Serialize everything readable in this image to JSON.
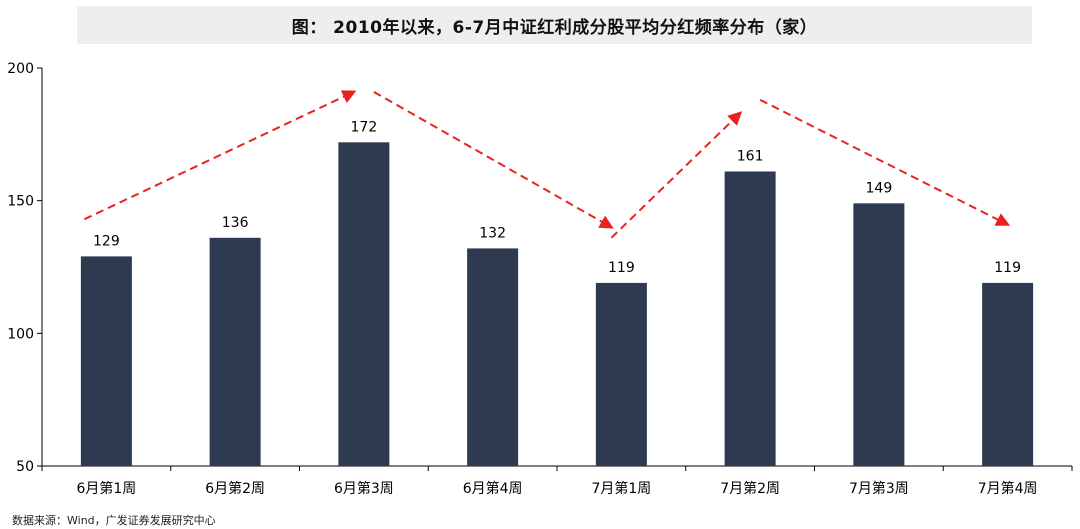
{
  "chart_data": {
    "type": "bar",
    "title": "图： 2010年以来，6-7月中证红利成分股平均分红频率分布（家）",
    "categories": [
      "6月第1周",
      "6月第2周",
      "6月第3周",
      "6月第4周",
      "7月第1周",
      "7月第2周",
      "7月第3周",
      "7月第4周"
    ],
    "values": [
      129,
      136,
      172,
      132,
      119,
      161,
      149,
      119
    ],
    "ylim": [
      50,
      200
    ],
    "yticks": [
      50,
      100,
      150,
      200
    ],
    "xlabel": "",
    "ylabel": "",
    "grid": false,
    "legend": "none",
    "bar_color": "#2d3a4f",
    "annotation_color": "#e8221f",
    "trend_arrows": [
      {
        "from": {
          "category": "6月第1周",
          "value": 143
        },
        "to": {
          "category": "6月第3周",
          "value": 191
        }
      },
      {
        "from": {
          "category": "6月第3周",
          "value": 191
        },
        "to": {
          "category": "7月第1周",
          "value": 140
        }
      },
      {
        "from": {
          "category": "7月第1周",
          "value": 136
        },
        "to": {
          "category": "7月第2周",
          "value": 183
        }
      },
      {
        "from": {
          "category": "7月第2周",
          "value": 188
        },
        "to": {
          "category": "7月第4周",
          "value": 141
        }
      }
    ]
  },
  "source": "数据来源：Wind，广发证券发展研究中心"
}
